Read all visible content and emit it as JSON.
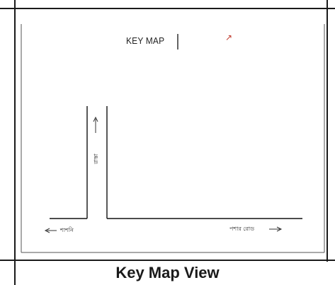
{
  "key_map": {
    "title": "KEY MAP",
    "north_symbol": "↗",
    "road_labels": {
      "vertical": "রাস্তা",
      "left": "শাশনি",
      "right": "পশার রোড"
    }
  },
  "caption": "Key Map View",
  "colors": {
    "line": "#1a1a1a",
    "north_accent": "#c0392b"
  }
}
